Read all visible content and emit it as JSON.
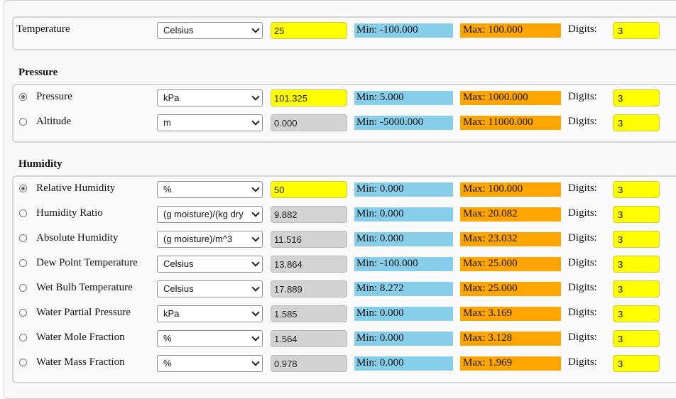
{
  "temperature": {
    "label": "Temperature",
    "unit": "Celsius",
    "value": "25",
    "min": "Min: -100.000",
    "max": "Max: 100.000",
    "digits_label": "Digits:",
    "digits": "3"
  },
  "pressure": {
    "title": "Pressure",
    "rows": [
      {
        "label": "Pressure",
        "unit": "kPa",
        "value": "101.325",
        "min": "Min: 5.000",
        "max": "Max: 1000.000",
        "digits_label": "Digits:",
        "digits": "3",
        "selected": true
      },
      {
        "label": "Altitude",
        "unit": "m",
        "value": "0.000",
        "min": "Min: -5000.000",
        "max": "Max: 11000.000",
        "digits_label": "Digits:",
        "digits": "3",
        "selected": false
      }
    ]
  },
  "humidity": {
    "title": "Humidity",
    "rows": [
      {
        "label": "Relative Humidity",
        "unit": "%",
        "value": "50",
        "min": "Min: 0.000",
        "max": "Max: 100.000",
        "digits_label": "Digits:",
        "digits": "3",
        "selected": true
      },
      {
        "label": "Humidity Ratio",
        "unit": "(g moisture)/(kg dry",
        "value": "9.882",
        "min": "Min: 0.000",
        "max": "Max: 20.082",
        "digits_label": "Digits:",
        "digits": "3",
        "selected": false
      },
      {
        "label": "Absolute Humidity",
        "unit": "(g moisture)/m^3",
        "value": "11.516",
        "min": "Min: 0.000",
        "max": "Max: 23.032",
        "digits_label": "Digits:",
        "digits": "3",
        "selected": false
      },
      {
        "label": "Dew Point Temperature",
        "unit": "Celsius",
        "value": "13.864",
        "min": "Min: -100.000",
        "max": "Max: 25.000",
        "digits_label": "Digits:",
        "digits": "3",
        "selected": false
      },
      {
        "label": "Wet Bulb Temperature",
        "unit": "Celsius",
        "value": "17.889",
        "min": "Min: 8.272",
        "max": "Max: 25.000",
        "digits_label": "Digits:",
        "digits": "3",
        "selected": false
      },
      {
        "label": "Water Partial Pressure",
        "unit": "kPa",
        "value": "1.585",
        "min": "Min: 0.000",
        "max": "Max: 3.169",
        "digits_label": "Digits:",
        "digits": "3",
        "selected": false
      },
      {
        "label": "Water Mole Fraction",
        "unit": "%",
        "value": "1.564",
        "min": "Min: 0.000",
        "max": "Max: 3.128",
        "digits_label": "Digits:",
        "digits": "3",
        "selected": false
      },
      {
        "label": "Water Mass Fraction",
        "unit": "%",
        "value": "0.978",
        "min": "Min: 0.000",
        "max": "Max: 1.969",
        "digits_label": "Digits:",
        "digits": "3",
        "selected": false
      }
    ]
  },
  "colors": {
    "active_input": "#ffff00",
    "readonly_input": "#d3d3d3",
    "min_badge": "#87ceeb",
    "max_badge": "#ffa500"
  }
}
